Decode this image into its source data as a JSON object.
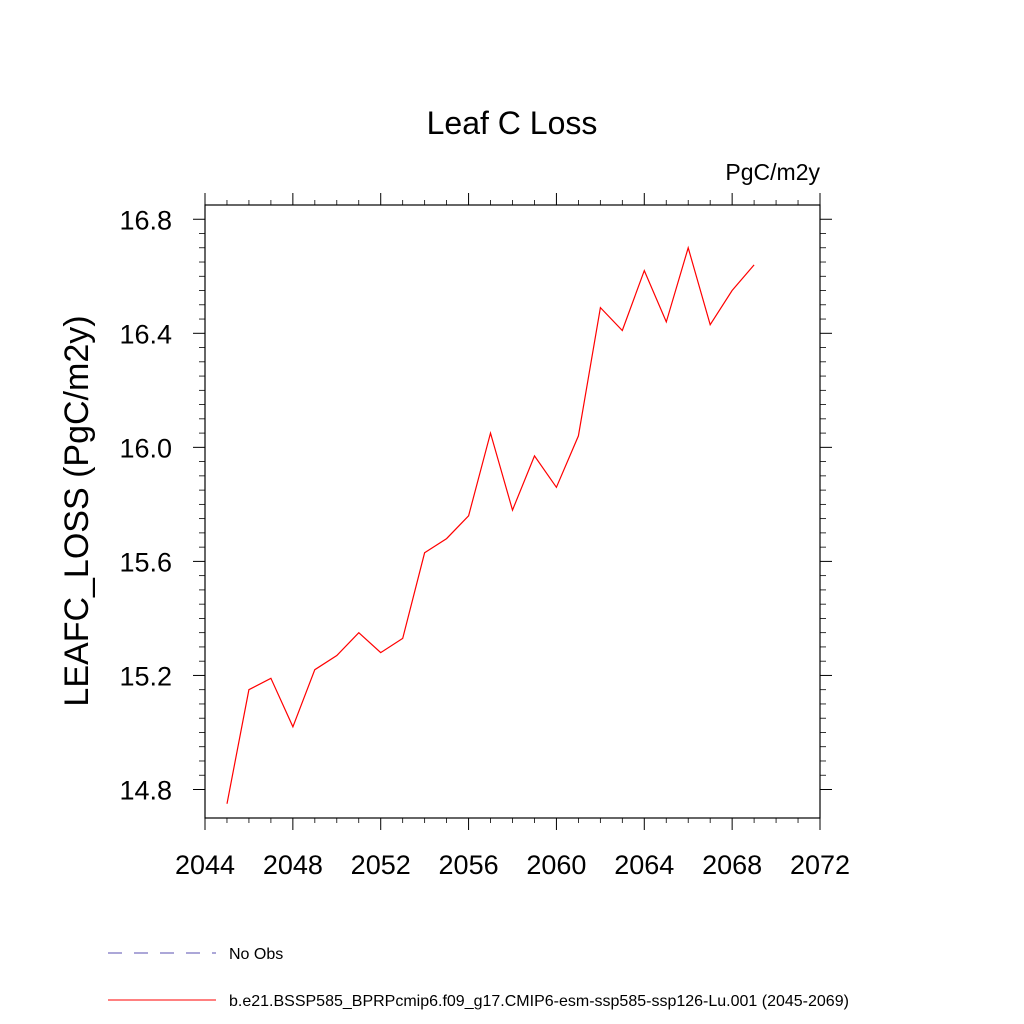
{
  "chart_data": {
    "type": "line",
    "title": "Leaf C Loss",
    "units": "PgC/m2y",
    "ylabel": "LEAFC_LOSS  (PgC/m2y)",
    "xlabel": "",
    "xlim": [
      2044,
      2072
    ],
    "ylim": [
      14.7,
      16.85
    ],
    "x_ticks": [
      2044,
      2048,
      2052,
      2056,
      2060,
      2064,
      2068,
      2072
    ],
    "x_tick_labels": [
      "2044",
      "2048",
      "2052",
      "2056",
      "2060",
      "2064",
      "2068",
      "2072"
    ],
    "y_ticks": [
      14.8,
      15.2,
      15.6,
      16.0,
      16.4,
      16.8
    ],
    "y_tick_labels": [
      "14.8",
      "15.2",
      "15.6",
      "16.0",
      "16.4",
      "16.8"
    ],
    "grid": false,
    "legend_position": "bottom",
    "series": [
      {
        "name": "b.e21.BSSP585_BPRPcmip6.f09_g17.CMIP6-esm-ssp585-ssp126-Lu.001 (2045-2069)",
        "color": "#ff0000",
        "dash": "solid",
        "x": [
          2045,
          2046,
          2047,
          2048,
          2049,
          2050,
          2051,
          2052,
          2053,
          2054,
          2055,
          2056,
          2057,
          2058,
          2059,
          2060,
          2061,
          2062,
          2063,
          2064,
          2065,
          2066,
          2067,
          2068,
          2069
        ],
        "y": [
          14.75,
          15.15,
          15.19,
          15.02,
          15.22,
          15.27,
          15.35,
          15.28,
          15.33,
          15.63,
          15.68,
          15.76,
          16.05,
          15.78,
          15.97,
          15.86,
          16.04,
          16.49,
          16.41,
          16.62,
          16.44,
          16.7,
          16.43,
          16.55,
          16.64
        ]
      }
    ],
    "legend": [
      {
        "label": "No Obs",
        "color": "#5a4fb0",
        "dash": "dashed"
      },
      {
        "label": "b.e21.BSSP585_BPRPcmip6.f09_g17.CMIP6-esm-ssp585-ssp126-Lu.001 (2045-2069)",
        "color": "#ff0000",
        "dash": "solid"
      }
    ]
  }
}
